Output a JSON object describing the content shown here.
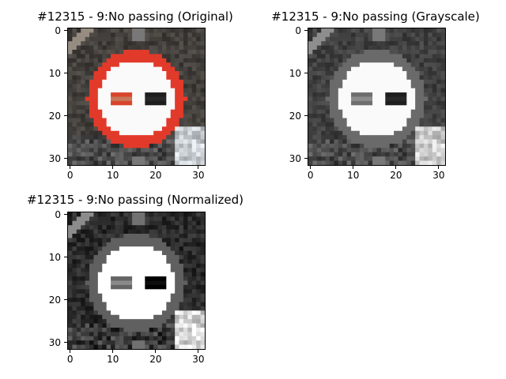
{
  "panels": [
    {
      "id": "original",
      "title": "#12315 - 9:No passing (Original)",
      "mode": "color"
    },
    {
      "id": "grayscale",
      "title": "#12315 - 9:No passing (Grayscale)",
      "mode": "gray"
    },
    {
      "id": "normalized",
      "title": "#12315 - 9:No passing (Normalized)",
      "mode": "norm"
    }
  ],
  "axes": {
    "xticks": [
      "0",
      "10",
      "20",
      "30"
    ],
    "yticks": [
      "0",
      "10",
      "20",
      "30"
    ],
    "xlim": [
      -0.5,
      31.5
    ],
    "ylim": [
      31.5,
      -0.5
    ]
  },
  "colors": {
    "ring_red": "#e23a2a",
    "car_red": "#d9452c",
    "car_black": "#1e1e1e",
    "background_dark": "#3a3a3a"
  }
}
